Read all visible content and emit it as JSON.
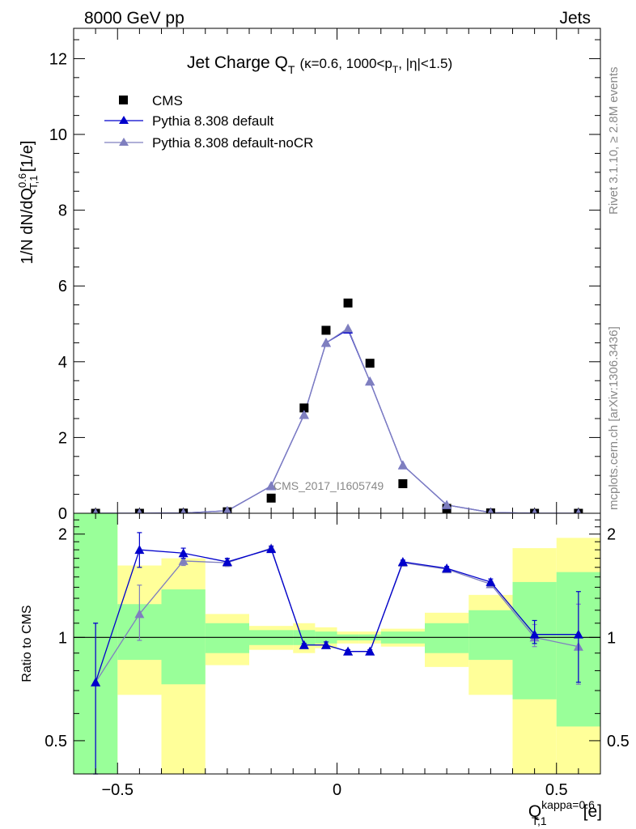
{
  "header": {
    "left": "8000 GeV pp",
    "right": "Jets"
  },
  "side_labels": {
    "rivet": "Rivet 3.1.10, ≥ 2.8M events",
    "mcplots": "mcplots.cern.ch [arXiv:1306.3436]"
  },
  "watermark": "CMS_2017_I1605749",
  "chart_data": [
    {
      "type": "line",
      "title_main": "Jet Charge Q",
      "title_sub": "T",
      "title_rest": "(κ=0.6, 1000<p",
      "title_sub2": "T",
      "title_end": ", |η|<1.5)",
      "ylabel": "1/N dN/dQ",
      "ylabel_sup": "0.6",
      "ylabel_sub": "T,1",
      "ylabel_unit": "[1/e]",
      "xlim": [
        -0.6,
        0.6
      ],
      "ylim": [
        0,
        12.8
      ],
      "yticks": [
        0,
        2,
        4,
        6,
        8,
        10,
        12
      ],
      "legend_position": "top-left",
      "x": [
        -0.55,
        -0.45,
        -0.35,
        -0.25,
        -0.15,
        -0.075,
        -0.025,
        0.025,
        0.075,
        0.15,
        0.25,
        0.35,
        0.45,
        0.55
      ],
      "series": [
        {
          "name": "CMS",
          "color": "#000000",
          "marker": "square",
          "values": [
            0.0,
            0.0,
            0.005,
            0.04,
            0.4,
            2.78,
            4.83,
            5.55,
            3.96,
            0.78,
            0.13,
            0.01,
            0.0,
            0.0
          ]
        },
        {
          "name": "Pythia 8.308 default",
          "color": "#0000cc",
          "marker": "triangle",
          "values": [
            0.0,
            0.0,
            0.008,
            0.065,
            0.72,
            2.6,
            4.5,
            4.85,
            3.48,
            1.27,
            0.22,
            0.02,
            0.0,
            0.0
          ]
        },
        {
          "name": "Pythia 8.308 default-noCR",
          "color": "#7f7fbf",
          "marker": "triangle",
          "values": [
            0.0,
            0.0,
            0.008,
            0.065,
            0.72,
            2.6,
            4.5,
            4.88,
            3.48,
            1.27,
            0.22,
            0.02,
            0.0,
            0.0
          ]
        }
      ]
    },
    {
      "type": "line",
      "ylabel": "Ratio to CMS",
      "xlabel": "Q",
      "xlabel_sup": "kappa=0.6",
      "xlabel_sub": "T,1",
      "xlabel_unit": "[e]",
      "xlim": [
        -0.6,
        0.6
      ],
      "ylim": [
        0.4,
        2.3
      ],
      "yticks": [
        0.5,
        1,
        2
      ],
      "xticks": [
        -0.5,
        0,
        0.5
      ],
      "band_edges": [
        -0.6,
        -0.5,
        -0.4,
        -0.3,
        -0.2,
        -0.1,
        -0.05,
        0.0,
        0.05,
        0.1,
        0.2,
        0.3,
        0.4,
        0.5,
        0.6
      ],
      "band_outer": [
        [
          0.4,
          2.3
        ],
        [
          0.68,
          1.62
        ],
        [
          0.4,
          1.7
        ],
        [
          0.83,
          1.17
        ],
        [
          0.92,
          1.08
        ],
        [
          0.9,
          1.1
        ],
        [
          0.93,
          1.07
        ],
        [
          0.96,
          1.04
        ],
        [
          0.96,
          1.04
        ],
        [
          0.94,
          1.06
        ],
        [
          0.82,
          1.18
        ],
        [
          0.68,
          1.33
        ],
        [
          0.4,
          1.82
        ],
        [
          0.4,
          1.95
        ]
      ],
      "band_inner": [
        [
          0.4,
          2.3
        ],
        [
          0.86,
          1.25
        ],
        [
          0.73,
          1.38
        ],
        [
          0.9,
          1.1
        ],
        [
          0.95,
          1.05
        ],
        [
          0.95,
          1.05
        ],
        [
          0.96,
          1.04
        ],
        [
          0.98,
          1.02
        ],
        [
          0.98,
          1.02
        ],
        [
          0.96,
          1.04
        ],
        [
          0.9,
          1.1
        ],
        [
          0.86,
          1.2
        ],
        [
          0.66,
          1.45
        ],
        [
          0.55,
          1.55
        ]
      ],
      "band_colors": {
        "outer": "#ffff99",
        "inner": "#99ff99"
      },
      "x": [
        -0.55,
        -0.45,
        -0.35,
        -0.25,
        -0.15,
        -0.075,
        -0.025,
        0.025,
        0.075,
        0.15,
        0.25,
        0.35,
        0.45,
        0.55
      ],
      "series": [
        {
          "name": "Pythia 8.308 default",
          "color": "#0000cc",
          "values": [
            0.74,
            1.8,
            1.76,
            1.66,
            1.81,
            0.95,
            0.95,
            0.91,
            0.91,
            1.66,
            1.59,
            1.45,
            1.02,
            1.02
          ],
          "err_lo": [
            0.4,
            1.6,
            1.7,
            1.62,
            1.78,
            0.94,
            0.93,
            0.9,
            0.9,
            1.64,
            1.57,
            1.42,
            0.96,
            0.74
          ],
          "err_hi": [
            1.1,
            2.02,
            1.82,
            1.7,
            1.84,
            0.96,
            0.97,
            0.92,
            0.92,
            1.68,
            1.61,
            1.48,
            1.12,
            1.36
          ]
        },
        {
          "name": "Pythia 8.308 default-noCR",
          "color": "#7f7fbf",
          "values": [
            0.74,
            1.17,
            1.67,
            1.65,
            1.82,
            0.95,
            0.95,
            0.91,
            0.91,
            1.65,
            1.58,
            1.43,
            1.0,
            0.94
          ],
          "err_lo": [
            0.4,
            0.98,
            1.62,
            1.61,
            1.79,
            0.94,
            0.93,
            0.9,
            0.9,
            1.63,
            1.56,
            1.41,
            0.94,
            0.73
          ],
          "err_hi": [
            1.1,
            1.42,
            1.72,
            1.69,
            1.85,
            0.96,
            0.97,
            0.92,
            0.92,
            1.67,
            1.6,
            1.46,
            1.09,
            1.25
          ]
        }
      ]
    }
  ]
}
